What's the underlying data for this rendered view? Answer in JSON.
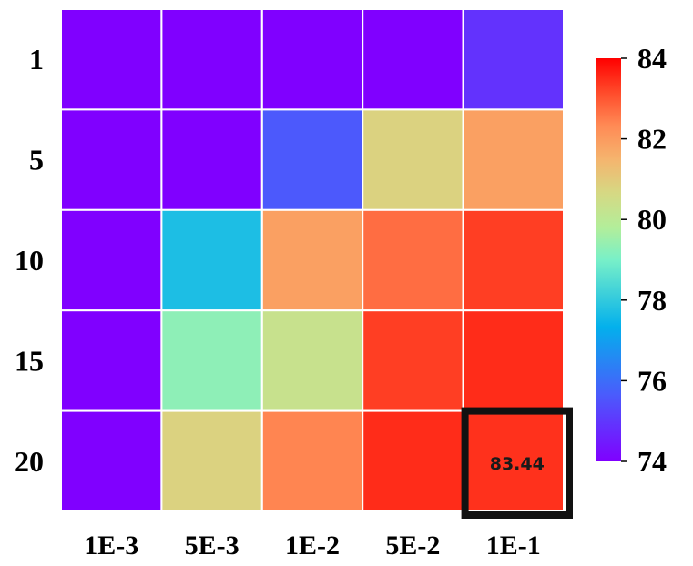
{
  "chart_data": {
    "type": "heatmap",
    "x_categories": [
      "1E-3",
      "5E-3",
      "1E-2",
      "5E-2",
      "1E-1"
    ],
    "y_categories": [
      "1",
      "5",
      "10",
      "15",
      "20"
    ],
    "values": [
      [
        74.0,
        74.0,
        74.0,
        74.0,
        74.9
      ],
      [
        74.0,
        74.0,
        75.6,
        80.8,
        81.9
      ],
      [
        74.0,
        77.7,
        81.9,
        82.7,
        83.3
      ],
      [
        74.0,
        79.3,
        80.3,
        83.3,
        83.5
      ],
      [
        74.0,
        80.8,
        82.4,
        83.5,
        83.44
      ]
    ],
    "colorbar": {
      "min": 74,
      "max": 84,
      "ticks": [
        74,
        76,
        78,
        80,
        82,
        84
      ]
    },
    "colormap": "rainbow",
    "highlight": {
      "row": 4,
      "col": 4,
      "label": "83.44",
      "border_color": "#111111"
    },
    "grid_color": "#ffffff"
  }
}
